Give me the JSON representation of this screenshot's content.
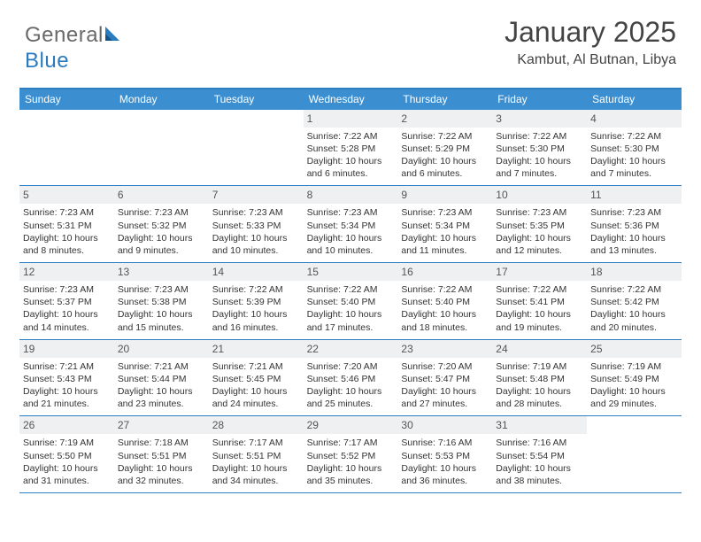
{
  "brand": {
    "text1": "General",
    "text2": "Blue"
  },
  "title": "January 2025",
  "location": "Kambut, Al Butnan, Libya",
  "colors": {
    "header_bg": "#3b8fd1",
    "rule": "#2d7fc1",
    "daynum_bg": "#eef0f2",
    "text": "#333333",
    "logo_gray": "#6a6a6a",
    "logo_blue": "#2b7bbf"
  },
  "weekdays": [
    "Sunday",
    "Monday",
    "Tuesday",
    "Wednesday",
    "Thursday",
    "Friday",
    "Saturday"
  ],
  "weeks": [
    [
      {
        "n": "",
        "sunrise": "",
        "sunset": "",
        "daylight": ""
      },
      {
        "n": "",
        "sunrise": "",
        "sunset": "",
        "daylight": ""
      },
      {
        "n": "",
        "sunrise": "",
        "sunset": "",
        "daylight": ""
      },
      {
        "n": "1",
        "sunrise": "Sunrise: 7:22 AM",
        "sunset": "Sunset: 5:28 PM",
        "daylight": "Daylight: 10 hours and 6 minutes."
      },
      {
        "n": "2",
        "sunrise": "Sunrise: 7:22 AM",
        "sunset": "Sunset: 5:29 PM",
        "daylight": "Daylight: 10 hours and 6 minutes."
      },
      {
        "n": "3",
        "sunrise": "Sunrise: 7:22 AM",
        "sunset": "Sunset: 5:30 PM",
        "daylight": "Daylight: 10 hours and 7 minutes."
      },
      {
        "n": "4",
        "sunrise": "Sunrise: 7:22 AM",
        "sunset": "Sunset: 5:30 PM",
        "daylight": "Daylight: 10 hours and 7 minutes."
      }
    ],
    [
      {
        "n": "5",
        "sunrise": "Sunrise: 7:23 AM",
        "sunset": "Sunset: 5:31 PM",
        "daylight": "Daylight: 10 hours and 8 minutes."
      },
      {
        "n": "6",
        "sunrise": "Sunrise: 7:23 AM",
        "sunset": "Sunset: 5:32 PM",
        "daylight": "Daylight: 10 hours and 9 minutes."
      },
      {
        "n": "7",
        "sunrise": "Sunrise: 7:23 AM",
        "sunset": "Sunset: 5:33 PM",
        "daylight": "Daylight: 10 hours and 10 minutes."
      },
      {
        "n": "8",
        "sunrise": "Sunrise: 7:23 AM",
        "sunset": "Sunset: 5:34 PM",
        "daylight": "Daylight: 10 hours and 10 minutes."
      },
      {
        "n": "9",
        "sunrise": "Sunrise: 7:23 AM",
        "sunset": "Sunset: 5:34 PM",
        "daylight": "Daylight: 10 hours and 11 minutes."
      },
      {
        "n": "10",
        "sunrise": "Sunrise: 7:23 AM",
        "sunset": "Sunset: 5:35 PM",
        "daylight": "Daylight: 10 hours and 12 minutes."
      },
      {
        "n": "11",
        "sunrise": "Sunrise: 7:23 AM",
        "sunset": "Sunset: 5:36 PM",
        "daylight": "Daylight: 10 hours and 13 minutes."
      }
    ],
    [
      {
        "n": "12",
        "sunrise": "Sunrise: 7:23 AM",
        "sunset": "Sunset: 5:37 PM",
        "daylight": "Daylight: 10 hours and 14 minutes."
      },
      {
        "n": "13",
        "sunrise": "Sunrise: 7:23 AM",
        "sunset": "Sunset: 5:38 PM",
        "daylight": "Daylight: 10 hours and 15 minutes."
      },
      {
        "n": "14",
        "sunrise": "Sunrise: 7:22 AM",
        "sunset": "Sunset: 5:39 PM",
        "daylight": "Daylight: 10 hours and 16 minutes."
      },
      {
        "n": "15",
        "sunrise": "Sunrise: 7:22 AM",
        "sunset": "Sunset: 5:40 PM",
        "daylight": "Daylight: 10 hours and 17 minutes."
      },
      {
        "n": "16",
        "sunrise": "Sunrise: 7:22 AM",
        "sunset": "Sunset: 5:40 PM",
        "daylight": "Daylight: 10 hours and 18 minutes."
      },
      {
        "n": "17",
        "sunrise": "Sunrise: 7:22 AM",
        "sunset": "Sunset: 5:41 PM",
        "daylight": "Daylight: 10 hours and 19 minutes."
      },
      {
        "n": "18",
        "sunrise": "Sunrise: 7:22 AM",
        "sunset": "Sunset: 5:42 PM",
        "daylight": "Daylight: 10 hours and 20 minutes."
      }
    ],
    [
      {
        "n": "19",
        "sunrise": "Sunrise: 7:21 AM",
        "sunset": "Sunset: 5:43 PM",
        "daylight": "Daylight: 10 hours and 21 minutes."
      },
      {
        "n": "20",
        "sunrise": "Sunrise: 7:21 AM",
        "sunset": "Sunset: 5:44 PM",
        "daylight": "Daylight: 10 hours and 23 minutes."
      },
      {
        "n": "21",
        "sunrise": "Sunrise: 7:21 AM",
        "sunset": "Sunset: 5:45 PM",
        "daylight": "Daylight: 10 hours and 24 minutes."
      },
      {
        "n": "22",
        "sunrise": "Sunrise: 7:20 AM",
        "sunset": "Sunset: 5:46 PM",
        "daylight": "Daylight: 10 hours and 25 minutes."
      },
      {
        "n": "23",
        "sunrise": "Sunrise: 7:20 AM",
        "sunset": "Sunset: 5:47 PM",
        "daylight": "Daylight: 10 hours and 27 minutes."
      },
      {
        "n": "24",
        "sunrise": "Sunrise: 7:19 AM",
        "sunset": "Sunset: 5:48 PM",
        "daylight": "Daylight: 10 hours and 28 minutes."
      },
      {
        "n": "25",
        "sunrise": "Sunrise: 7:19 AM",
        "sunset": "Sunset: 5:49 PM",
        "daylight": "Daylight: 10 hours and 29 minutes."
      }
    ],
    [
      {
        "n": "26",
        "sunrise": "Sunrise: 7:19 AM",
        "sunset": "Sunset: 5:50 PM",
        "daylight": "Daylight: 10 hours and 31 minutes."
      },
      {
        "n": "27",
        "sunrise": "Sunrise: 7:18 AM",
        "sunset": "Sunset: 5:51 PM",
        "daylight": "Daylight: 10 hours and 32 minutes."
      },
      {
        "n": "28",
        "sunrise": "Sunrise: 7:17 AM",
        "sunset": "Sunset: 5:51 PM",
        "daylight": "Daylight: 10 hours and 34 minutes."
      },
      {
        "n": "29",
        "sunrise": "Sunrise: 7:17 AM",
        "sunset": "Sunset: 5:52 PM",
        "daylight": "Daylight: 10 hours and 35 minutes."
      },
      {
        "n": "30",
        "sunrise": "Sunrise: 7:16 AM",
        "sunset": "Sunset: 5:53 PM",
        "daylight": "Daylight: 10 hours and 36 minutes."
      },
      {
        "n": "31",
        "sunrise": "Sunrise: 7:16 AM",
        "sunset": "Sunset: 5:54 PM",
        "daylight": "Daylight: 10 hours and 38 minutes."
      },
      {
        "n": "",
        "sunrise": "",
        "sunset": "",
        "daylight": ""
      }
    ]
  ]
}
